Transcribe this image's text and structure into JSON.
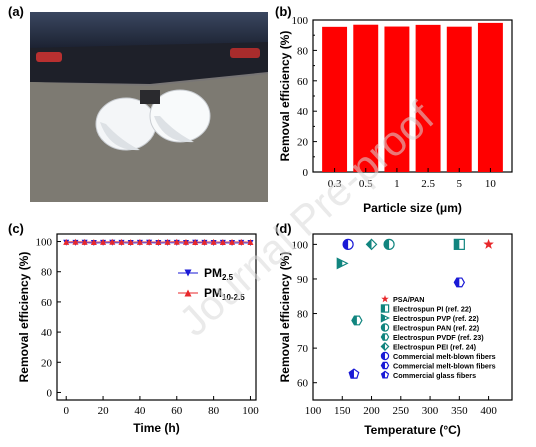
{
  "panels": {
    "a": "(a)",
    "b": "(b)",
    "c": "(c)",
    "d": "(d)"
  },
  "watermark": "Journal Pre-proof",
  "chart_data": [
    {
      "panel": "(b)",
      "type": "bar",
      "categories": [
        "0.3",
        "0.5",
        "1",
        "2.5",
        "5",
        "10"
      ],
      "values": [
        95.5,
        96.9,
        95.7,
        96.8,
        95.6,
        98.1
      ],
      "xlabel": "Particle size (μm)",
      "ylabel": "Removal efficiency (%)",
      "ylim": [
        0,
        100
      ],
      "yticks": [
        "0",
        "20",
        "40",
        "60",
        "80",
        "100"
      ],
      "bar_color": "#ff0000"
    },
    {
      "panel": "(c)",
      "type": "line",
      "xlabel": "Time (h)",
      "ylabel": "Removal efficiency (%)",
      "xlim": [
        -5,
        103
      ],
      "ylim": [
        -5,
        105
      ],
      "xticks": [
        "0",
        "20",
        "40",
        "60",
        "80",
        "100"
      ],
      "yticks": [
        "0",
        "20",
        "40",
        "60",
        "80",
        "100"
      ],
      "x": [
        0,
        5,
        10,
        15,
        20,
        25,
        30,
        35,
        40,
        45,
        50,
        55,
        60,
        65,
        70,
        75,
        80,
        85,
        90,
        95,
        100
      ],
      "series": [
        {
          "name": "PM",
          "sub": "2.5",
          "color": "#1a1ad6",
          "marker": "triangle-down",
          "values": [
            99.2,
            99.1,
            99.2,
            99.0,
            99.1,
            99.2,
            99.1,
            99.0,
            99.1,
            99.2,
            99.0,
            99.1,
            99.1,
            99.0,
            99.2,
            99.1,
            99.0,
            99.1,
            99.0,
            99.1,
            99.0
          ]
        },
        {
          "name": "PM",
          "sub": "10-2.5",
          "color": "#e8282b",
          "marker": "triangle-up",
          "values": [
            99.8,
            99.9,
            99.8,
            99.7,
            99.8,
            99.9,
            99.8,
            99.7,
            99.8,
            99.8,
            99.7,
            99.8,
            99.9,
            99.8,
            99.7,
            99.8,
            99.8,
            99.7,
            99.8,
            99.8,
            99.7
          ]
        }
      ],
      "legend_position": "center-right"
    },
    {
      "panel": "(d)",
      "type": "scatter",
      "xlabel": "Temperature (°C)",
      "ylabel": "Removal efficiency (%)",
      "xlim": [
        100,
        440
      ],
      "ylim": [
        55,
        103
      ],
      "xticks": [
        "100",
        "150",
        "200",
        "250",
        "300",
        "350",
        "400"
      ],
      "yticks": [
        "60",
        "70",
        "80",
        "90",
        "100"
      ],
      "legend_position": "center-right",
      "series": [
        {
          "name": "PSA/PAN",
          "marker": "star",
          "color": "#e8282b",
          "points": [
            [
              400,
              100
            ]
          ]
        },
        {
          "name": "Electrospun PI (ref. 22)",
          "marker": "square-half",
          "color": "#11857f",
          "points": [
            [
              350,
              100
            ]
          ]
        },
        {
          "name": "Electrospun PVP (ref. 22)",
          "marker": "tri-right-half",
          "color": "#11857f",
          "points": [
            [
              150,
              94.5
            ]
          ]
        },
        {
          "name": "Electrospun PAN (ref. 22)",
          "marker": "circle-half",
          "color": "#11857f",
          "points": [
            [
              230,
              100
            ]
          ]
        },
        {
          "name": "Electrospun PVDF (ref. 23)",
          "marker": "hexagon-half",
          "color": "#11857f",
          "points": [
            [
              175,
              78
            ]
          ]
        },
        {
          "name": "Electrospun PEI (ref. 24)",
          "marker": "diamond-half",
          "color": "#11857f",
          "points": [
            [
              200,
              100
            ]
          ]
        },
        {
          "name": "Commercial melt-blown fibers",
          "marker": "circle-half-blue",
          "color": "#1a1ad6",
          "points": [
            [
              160,
              100
            ]
          ]
        },
        {
          "name": "Commercial melt-blown fibers",
          "marker": "hexagon-half-blue",
          "color": "#1a1ad6",
          "points": [
            [
              350,
              89
            ]
          ]
        },
        {
          "name": "Commercial glass fibers",
          "marker": "pentagon-half-blue",
          "color": "#1a1ad6",
          "points": [
            [
              170,
              62.5
            ]
          ]
        }
      ]
    }
  ]
}
